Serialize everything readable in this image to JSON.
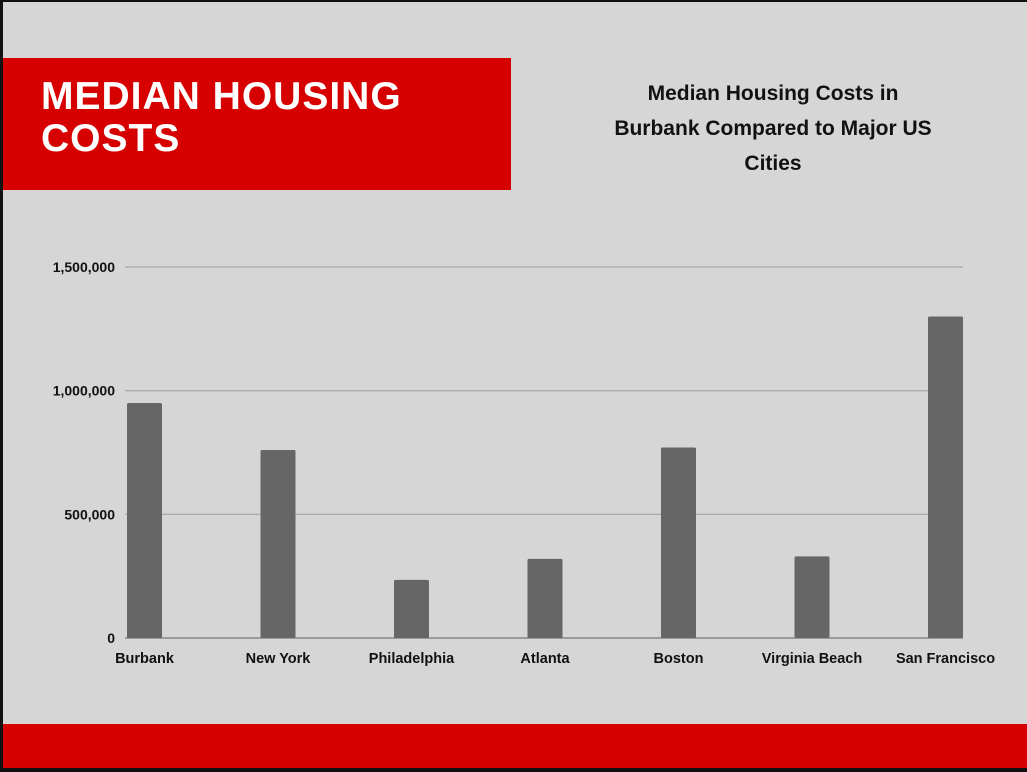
{
  "banner": {
    "title": "MEDIAN HOUSING COSTS"
  },
  "colors": {
    "banner": "#d60000",
    "bars": "#666666",
    "background": "#d6d6d6",
    "grid": "#aaaaaa"
  },
  "chart_data": {
    "type": "bar",
    "title": "Median Housing Costs in Burbank Compared to Major US Cities",
    "xlabel": "",
    "ylabel": "",
    "categories": [
      "Burbank",
      "New York",
      "Philadelphia",
      "Atlanta",
      "Boston",
      "Virginia Beach",
      "San Francisco"
    ],
    "values": [
      950000,
      760000,
      235000,
      320000,
      770000,
      330000,
      1300000
    ],
    "ylim": [
      0,
      1500000
    ],
    "yticks": [
      0,
      500000,
      1000000,
      1500000
    ],
    "ytick_labels": [
      "0",
      "500,000",
      "1,000,000",
      "1,500,000"
    ],
    "grid": true,
    "legend": "none"
  }
}
